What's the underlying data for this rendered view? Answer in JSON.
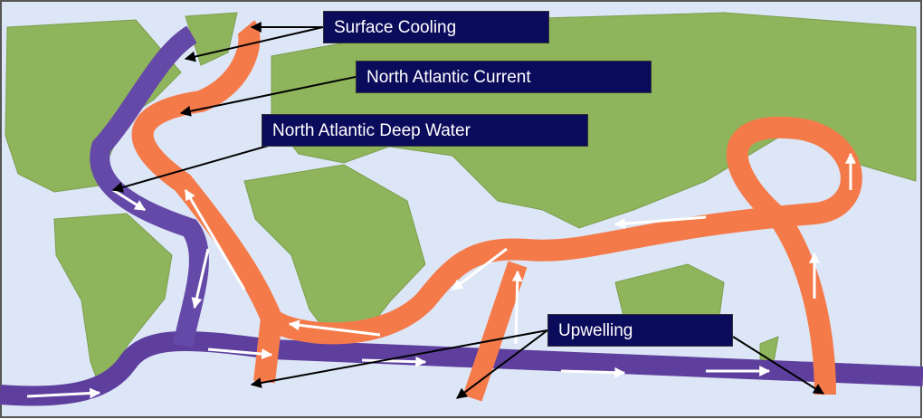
{
  "labels": [
    {
      "text": "Surface Cooling"
    },
    {
      "text": "North Atlantic Current"
    },
    {
      "text": "North Atlantic Deep Water"
    },
    {
      "text": "Upwelling"
    }
  ]
}
